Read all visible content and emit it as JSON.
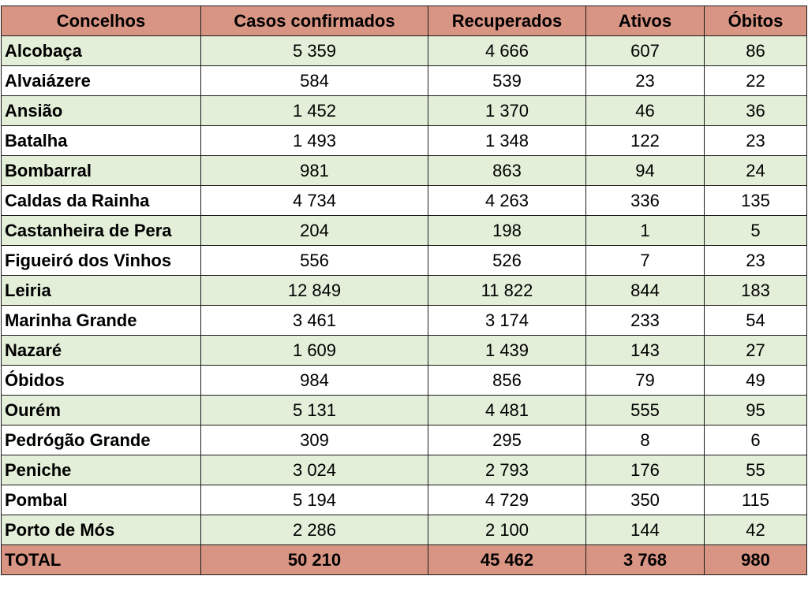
{
  "headers": [
    "Concelhos",
    "Casos confirmados",
    "Recuperados",
    "Ativos",
    "Óbitos"
  ],
  "rows": [
    [
      "Alcobaça",
      "5 359",
      "4 666",
      "607",
      "86"
    ],
    [
      "Alvaiázere",
      "584",
      "539",
      "23",
      "22"
    ],
    [
      "Ansião",
      "1 452",
      "1 370",
      "46",
      "36"
    ],
    [
      "Batalha",
      "1 493",
      "1 348",
      "122",
      "23"
    ],
    [
      "Bombarral",
      "981",
      "863",
      "94",
      "24"
    ],
    [
      "Caldas da Rainha",
      "4 734",
      "4 263",
      "336",
      "135"
    ],
    [
      "Castanheira de Pera",
      "204",
      "198",
      "1",
      "5"
    ],
    [
      "Figueiró dos Vinhos",
      "556",
      "526",
      "7",
      "23"
    ],
    [
      "Leiria",
      "12 849",
      "11 822",
      "844",
      "183"
    ],
    [
      "Marinha Grande",
      "3 461",
      "3 174",
      "233",
      "54"
    ],
    [
      "Nazaré",
      "1 609",
      "1 439",
      "143",
      "27"
    ],
    [
      "Óbidos",
      "984",
      "856",
      "79",
      "49"
    ],
    [
      "Ourém",
      "5 131",
      "4 481",
      "555",
      "95"
    ],
    [
      "Pedrógão Grande",
      "309",
      "295",
      "8",
      "6"
    ],
    [
      "Peniche",
      "3 024",
      "2 793",
      "176",
      "55"
    ],
    [
      "Pombal",
      "5 194",
      "4 729",
      "350",
      "115"
    ],
    [
      "Porto de Mós",
      "2 286",
      "2 100",
      "144",
      "42"
    ]
  ],
  "total": [
    "TOTAL",
    "50 210",
    "45 462",
    "3 768",
    "980"
  ],
  "colors": {
    "header_bg": "#d99584",
    "row_alt_bg": "#e3efd9",
    "border": "#1a1a1a"
  }
}
